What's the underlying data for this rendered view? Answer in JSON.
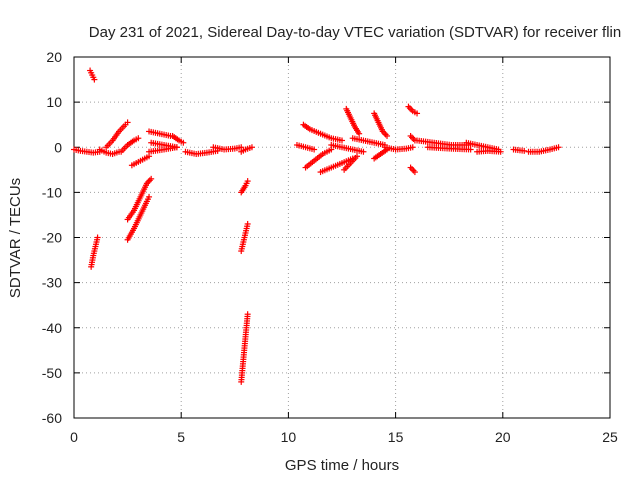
{
  "chart_data": {
    "type": "scatter",
    "title": "Day 231 of 2021, Sidereal Day-to-day VTEC variation (SDTVAR) for receiver flin",
    "xlabel": "GPS time / hours",
    "ylabel": "SDTVAR / TECUs",
    "xlim": [
      0,
      25
    ],
    "ylim": [
      -60,
      20
    ],
    "xticks": [
      "0",
      "5",
      "10",
      "15",
      "20",
      "25"
    ],
    "yticks": [
      "20",
      "10",
      "0",
      "-10",
      "-20",
      "-30",
      "-40",
      "-50",
      "-60"
    ],
    "grid": true,
    "marker": "+",
    "marker_color": "#ff0000",
    "series": [
      {
        "name": "SDTVAR",
        "segments": [
          [
            [
              0.0,
              -0.5
            ],
            [
              0.3,
              -0.8
            ],
            [
              0.6,
              -1.0
            ],
            [
              0.9,
              -1.2
            ],
            [
              1.2,
              -1.0
            ]
          ],
          [
            [
              0.75,
              17.0
            ],
            [
              0.85,
              16.0
            ],
            [
              0.95,
              15.0
            ]
          ],
          [
            [
              0.8,
              -26.5
            ],
            [
              0.9,
              -24.0
            ],
            [
              1.0,
              -22.0
            ],
            [
              1.1,
              -20.0
            ]
          ],
          [
            [
              1.2,
              -0.5
            ],
            [
              1.5,
              -1.2
            ],
            [
              1.8,
              -1.5
            ],
            [
              2.1,
              -1.0
            ]
          ],
          [
            [
              1.5,
              0.0
            ],
            [
              1.8,
              1.5
            ],
            [
              2.1,
              3.5
            ],
            [
              2.4,
              5.0
            ],
            [
              2.5,
              5.5
            ]
          ],
          [
            [
              2.2,
              -1.0
            ],
            [
              2.5,
              0.5
            ],
            [
              2.8,
              1.5
            ],
            [
              3.0,
              2.0
            ]
          ],
          [
            [
              2.7,
              -4.0
            ],
            [
              3.1,
              -3.0
            ],
            [
              3.5,
              -2.0
            ]
          ],
          [
            [
              2.5,
              -16.0
            ],
            [
              2.8,
              -14.0
            ],
            [
              3.1,
              -11.0
            ],
            [
              3.4,
              -8.0
            ],
            [
              3.6,
              -7.0
            ]
          ],
          [
            [
              2.5,
              -20.5
            ],
            [
              2.8,
              -18.0
            ],
            [
              3.1,
              -15.0
            ],
            [
              3.4,
              -12.0
            ],
            [
              3.5,
              -11.0
            ]
          ],
          [
            [
              3.5,
              3.5
            ],
            [
              4.0,
              3.0
            ],
            [
              4.5,
              2.5
            ]
          ],
          [
            [
              3.6,
              1.0
            ],
            [
              4.2,
              0.5
            ],
            [
              4.8,
              0.0
            ]
          ],
          [
            [
              3.5,
              -1.0
            ],
            [
              4.2,
              -0.5
            ],
            [
              4.8,
              0.0
            ]
          ],
          [
            [
              4.6,
              2.5
            ],
            [
              4.9,
              1.5
            ],
            [
              5.1,
              1.0
            ]
          ],
          [
            [
              5.2,
              -1.0
            ],
            [
              5.7,
              -1.5
            ],
            [
              6.2,
              -1.2
            ],
            [
              6.7,
              -0.8
            ]
          ],
          [
            [
              6.5,
              0.0
            ],
            [
              7.0,
              -0.5
            ],
            [
              7.5,
              -0.3
            ],
            [
              7.8,
              0.0
            ]
          ],
          [
            [
              7.8,
              -1.0
            ],
            [
              8.0,
              -0.5
            ],
            [
              8.3,
              0.0
            ]
          ],
          [
            [
              7.8,
              -10.0
            ],
            [
              8.0,
              -8.5
            ],
            [
              8.1,
              -7.5
            ]
          ],
          [
            [
              7.8,
              -23.0
            ],
            [
              7.9,
              -21.0
            ],
            [
              8.0,
              -19.0
            ],
            [
              8.1,
              -17.0
            ]
          ],
          [
            [
              7.8,
              -52.0
            ],
            [
              7.9,
              -47.0
            ],
            [
              8.0,
              -42.0
            ],
            [
              8.1,
              -37.0
            ]
          ],
          [
            [
              10.4,
              0.5
            ],
            [
              10.8,
              0.0
            ],
            [
              11.2,
              -0.5
            ]
          ],
          [
            [
              10.7,
              5.0
            ],
            [
              11.0,
              4.0
            ],
            [
              11.5,
              3.0
            ],
            [
              12.0,
              2.0
            ],
            [
              12.5,
              1.5
            ]
          ],
          [
            [
              10.8,
              -4.5
            ],
            [
              11.2,
              -3.0
            ],
            [
              11.6,
              -1.5
            ],
            [
              12.0,
              -0.5
            ]
          ],
          [
            [
              11.5,
              -5.5
            ],
            [
              12.0,
              -4.5
            ],
            [
              12.5,
              -3.5
            ],
            [
              13.0,
              -2.5
            ]
          ],
          [
            [
              12.0,
              0.5
            ],
            [
              12.5,
              0.0
            ],
            [
              13.0,
              -0.5
            ],
            [
              13.5,
              -1.0
            ]
          ],
          [
            [
              12.7,
              8.5
            ],
            [
              12.9,
              6.5
            ],
            [
              13.1,
              4.5
            ],
            [
              13.3,
              3.0
            ]
          ],
          [
            [
              12.6,
              -5.0
            ],
            [
              12.9,
              -3.5
            ],
            [
              13.2,
              -2.0
            ]
          ],
          [
            [
              13.0,
              2.0
            ],
            [
              13.5,
              1.5
            ],
            [
              14.0,
              1.0
            ],
            [
              14.5,
              0.5
            ]
          ],
          [
            [
              14.0,
              7.5
            ],
            [
              14.2,
              5.5
            ],
            [
              14.4,
              3.5
            ],
            [
              14.6,
              2.5
            ]
          ],
          [
            [
              14.0,
              -2.5
            ],
            [
              14.3,
              -1.5
            ],
            [
              14.6,
              -0.5
            ]
          ],
          [
            [
              14.5,
              0.0
            ],
            [
              15.0,
              -0.5
            ],
            [
              15.5,
              -0.3
            ],
            [
              15.8,
              0.0
            ]
          ],
          [
            [
              15.6,
              9.0
            ],
            [
              15.8,
              8.0
            ],
            [
              16.0,
              7.5
            ]
          ],
          [
            [
              15.7,
              2.5
            ],
            [
              15.9,
              1.5
            ]
          ],
          [
            [
              15.7,
              -4.5
            ],
            [
              15.9,
              -5.5
            ]
          ],
          [
            [
              16.0,
              1.5
            ],
            [
              16.8,
              1.0
            ],
            [
              17.6,
              0.5
            ],
            [
              18.4,
              0.5
            ]
          ],
          [
            [
              16.5,
              0.0
            ],
            [
              17.5,
              -0.3
            ],
            [
              18.5,
              -0.5
            ]
          ],
          [
            [
              18.3,
              1.0
            ],
            [
              18.8,
              0.5
            ],
            [
              19.3,
              0.0
            ],
            [
              19.8,
              -0.5
            ]
          ],
          [
            [
              18.8,
              -1.0
            ],
            [
              19.3,
              -0.8
            ],
            [
              19.9,
              -1.0
            ]
          ],
          [
            [
              20.5,
              -0.5
            ],
            [
              21.0,
              -0.8
            ]
          ],
          [
            [
              21.2,
              -1.0
            ],
            [
              21.7,
              -1.0
            ],
            [
              22.2,
              -0.5
            ],
            [
              22.6,
              0.0
            ]
          ]
        ]
      }
    ]
  }
}
